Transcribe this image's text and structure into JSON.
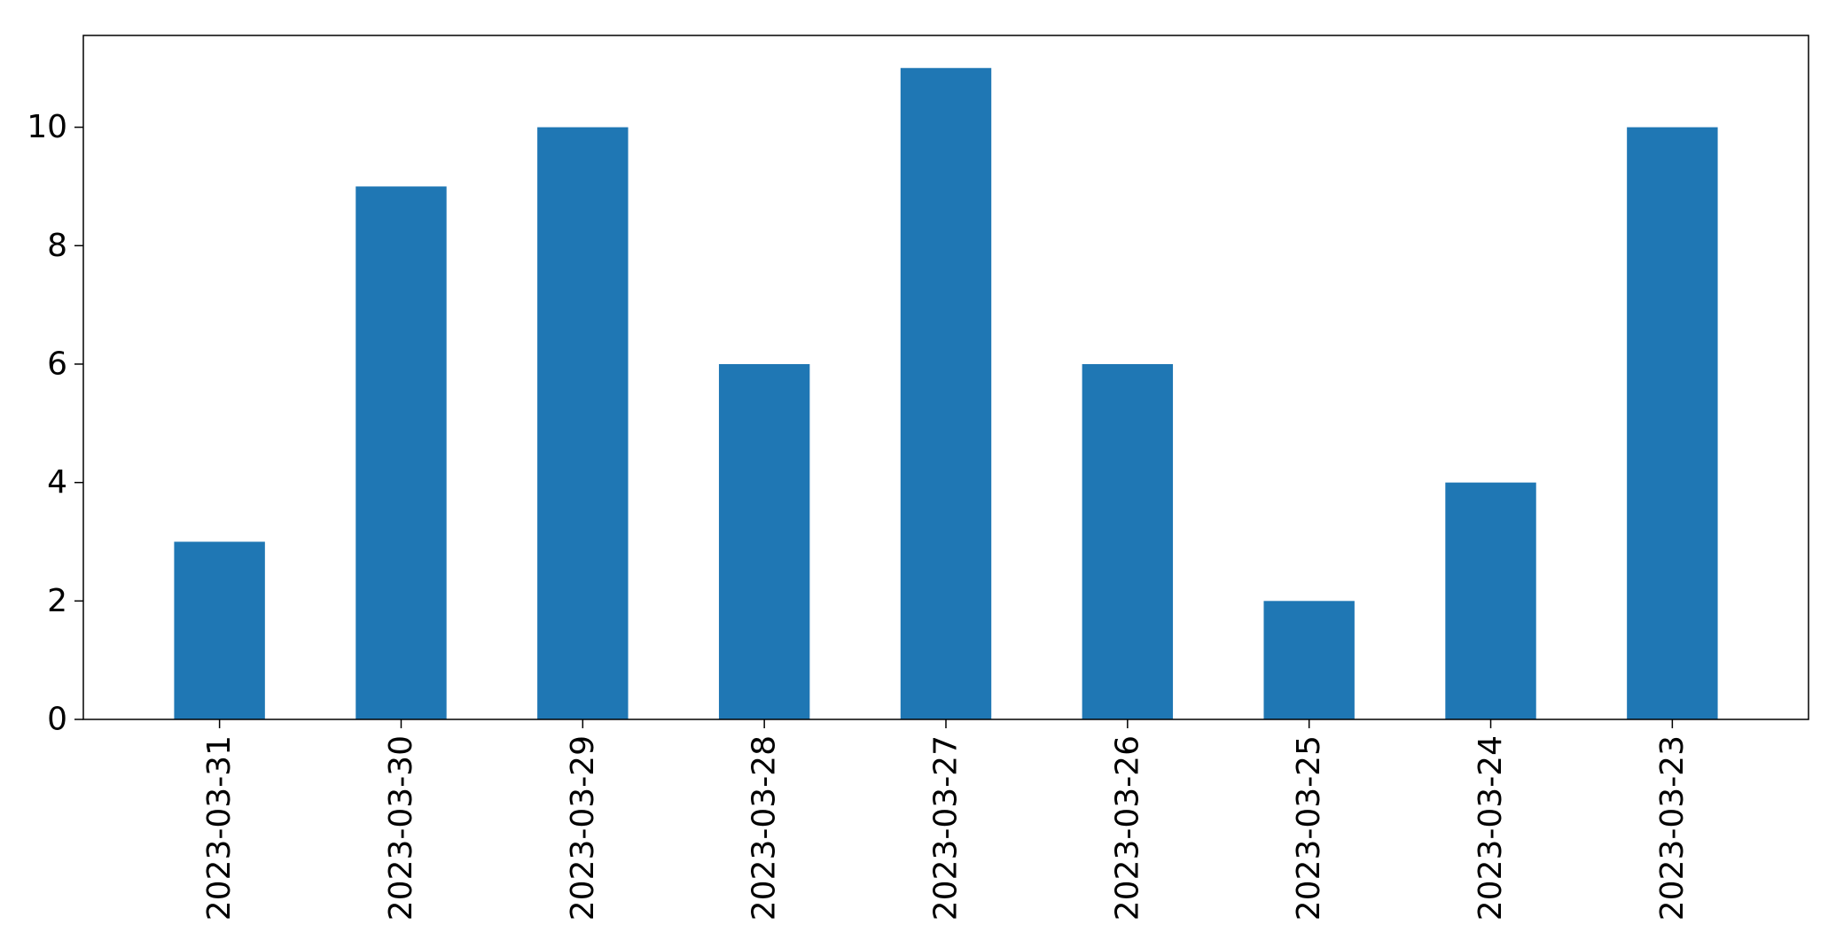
{
  "chart_data": {
    "type": "bar",
    "categories": [
      "2023-03-31",
      "2023-03-30",
      "2023-03-29",
      "2023-03-28",
      "2023-03-27",
      "2023-03-26",
      "2023-03-25",
      "2023-03-24",
      "2023-03-23"
    ],
    "values": [
      3,
      9,
      10,
      6,
      11,
      6,
      2,
      4,
      10
    ],
    "title": "",
    "xlabel": "",
    "ylabel": "",
    "ylim": [
      0,
      11.55
    ],
    "yticks": [
      0,
      2,
      4,
      6,
      8,
      10
    ],
    "grid": false,
    "bar_color": "#1f77b4",
    "x_tick_rotation": "vertical"
  }
}
